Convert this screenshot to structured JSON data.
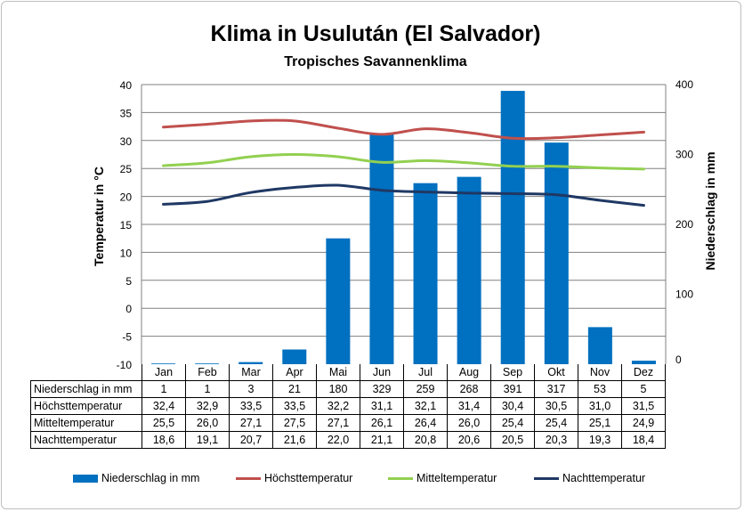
{
  "chart_data": {
    "type": "bar+line",
    "title": "Klima in Usulután (El Salvador)",
    "subtitle": "Tropisches Savannenklima",
    "categories": [
      "Jan",
      "Feb",
      "Mar",
      "Apr",
      "Mai",
      "Jun",
      "Jul",
      "Aug",
      "Sep",
      "Okt",
      "Nov",
      "Dez"
    ],
    "y_left": {
      "label": "Temperatur in °C",
      "range": [
        -10,
        40
      ],
      "ticks": [
        "-10",
        "-5",
        "0",
        "5",
        "10",
        "15",
        "20",
        "25",
        "30",
        "35",
        "40"
      ]
    },
    "y_right": {
      "label": "Niederschlag in mm",
      "range": [
        0,
        400
      ],
      "ticks": [
        "0",
        "100",
        "200",
        "300",
        "400"
      ]
    },
    "grid": true,
    "legend_position": "bottom",
    "series": [
      {
        "name": "Niederschlag in mm",
        "kind": "bar",
        "axis": "right",
        "color": "#0070c0",
        "values": [
          1,
          1,
          3,
          21,
          180,
          329,
          259,
          268,
          391,
          317,
          53,
          5
        ],
        "labels": [
          "1",
          "1",
          "3",
          "21",
          "180",
          "329",
          "259",
          "268",
          "391",
          "317",
          "53",
          "5"
        ]
      },
      {
        "name": "Höchsttemperatur",
        "kind": "line",
        "axis": "left",
        "color": "#c0504d",
        "values": [
          32.4,
          32.9,
          33.5,
          33.5,
          32.2,
          31.1,
          32.1,
          31.4,
          30.4,
          30.5,
          31.0,
          31.5
        ],
        "labels": [
          "32,4",
          "32,9",
          "33,5",
          "33,5",
          "32,2",
          "31,1",
          "32,1",
          "31,4",
          "30,4",
          "30,5",
          "31,0",
          "31,5"
        ]
      },
      {
        "name": "Mitteltemperatur",
        "kind": "line",
        "axis": "left",
        "color": "#92d050",
        "values": [
          25.5,
          26.0,
          27.1,
          27.5,
          27.1,
          26.1,
          26.4,
          26.0,
          25.4,
          25.4,
          25.1,
          24.9
        ],
        "labels": [
          "25,5",
          "26,0",
          "27,1",
          "27,5",
          "27,1",
          "26,1",
          "26,4",
          "26,0",
          "25,4",
          "25,4",
          "25,1",
          "24,9"
        ]
      },
      {
        "name": "Nachttemperatur",
        "kind": "line",
        "axis": "left",
        "color": "#1f3864",
        "values": [
          18.6,
          19.1,
          20.7,
          21.6,
          22.0,
          21.1,
          20.8,
          20.6,
          20.5,
          20.3,
          19.3,
          18.4
        ],
        "labels": [
          "18,6",
          "19,1",
          "20,7",
          "21,6",
          "22,0",
          "21,1",
          "20,8",
          "20,6",
          "20,5",
          "20,3",
          "19,3",
          "18,4"
        ]
      }
    ]
  }
}
